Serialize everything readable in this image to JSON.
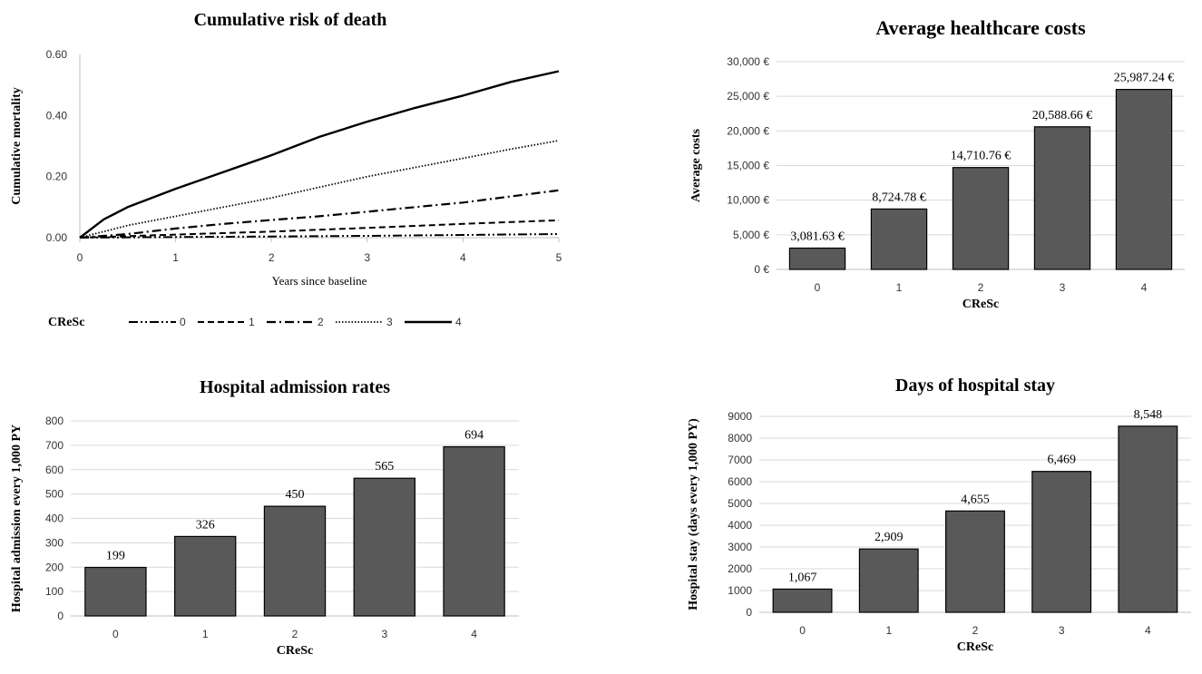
{
  "chart_data": [
    {
      "id": "mortality",
      "type": "line",
      "title": "Cumulative risk of death",
      "xlabel": "Years since baseline",
      "ylabel": "Cumulative  mortality",
      "xlim": [
        0,
        5
      ],
      "ylim": [
        0,
        0.6
      ],
      "xticks": [
        "0",
        "1",
        "2",
        "3",
        "4",
        "5"
      ],
      "yticks": [
        "0.00",
        "0.20",
        "0.40",
        "0.60"
      ],
      "legend_title": "CReSc",
      "series": [
        {
          "name": "0",
          "dash": "dash-dot-dot",
          "x": [
            0,
            1,
            2,
            3,
            4,
            5
          ],
          "y": [
            0,
            0.002,
            0.004,
            0.006,
            0.009,
            0.012
          ]
        },
        {
          "name": "1",
          "dash": "dashed",
          "x": [
            0,
            1,
            2,
            3,
            4,
            5
          ],
          "y": [
            0,
            0.01,
            0.02,
            0.032,
            0.045,
            0.057
          ]
        },
        {
          "name": "2",
          "dash": "dash-dot",
          "x": [
            0,
            0.5,
            1,
            1.5,
            2,
            2.5,
            3,
            3.5,
            4,
            4.5,
            5
          ],
          "y": [
            0,
            0.012,
            0.03,
            0.045,
            0.058,
            0.07,
            0.085,
            0.1,
            0.115,
            0.135,
            0.155
          ]
        },
        {
          "name": "3",
          "dash": "dotted",
          "x": [
            0,
            0.5,
            1,
            1.5,
            2,
            2.5,
            3,
            3.5,
            4,
            4.5,
            5
          ],
          "y": [
            0,
            0.04,
            0.07,
            0.1,
            0.13,
            0.165,
            0.2,
            0.23,
            0.26,
            0.29,
            0.318
          ]
        },
        {
          "name": "4",
          "dash": "solid",
          "x": [
            0,
            0.25,
            0.5,
            1,
            1.5,
            2,
            2.5,
            3,
            3.5,
            4,
            4.5,
            5
          ],
          "y": [
            0,
            0.06,
            0.1,
            0.16,
            0.215,
            0.27,
            0.33,
            0.38,
            0.425,
            0.465,
            0.51,
            0.545
          ]
        }
      ]
    },
    {
      "id": "costs",
      "type": "bar",
      "title": "Average healthcare costs",
      "xlabel": "CReSc",
      "ylabel": "Average  costs",
      "categories": [
        "0",
        "1",
        "2",
        "3",
        "4"
      ],
      "values": [
        3081.63,
        8724.78,
        14710.76,
        20588.66,
        25987.24
      ],
      "labels": [
        "3,081.63 €",
        "8,724.78 €",
        "14,710.76 €",
        "20,588.66 €",
        "25,987.24 €"
      ],
      "ylim": [
        0,
        30000
      ],
      "yticks": [
        "0 €",
        "5,000 €",
        "10,000 €",
        "15,000 €",
        "20,000 €",
        "25,000 €",
        "30,000 €"
      ]
    },
    {
      "id": "admissions",
      "type": "bar",
      "title": "Hospital admission rates",
      "xlabel": "CReSc",
      "ylabel": "Hospital admission every 1,000 PY",
      "categories": [
        "0",
        "1",
        "2",
        "3",
        "4"
      ],
      "values": [
        199,
        326,
        450,
        565,
        694
      ],
      "labels": [
        "199",
        "326",
        "450",
        "565",
        "694"
      ],
      "ylim": [
        0,
        800
      ],
      "yticks": [
        "0",
        "100",
        "200",
        "300",
        "400",
        "500",
        "600",
        "700",
        "800"
      ]
    },
    {
      "id": "stay",
      "type": "bar",
      "title": "Days of hospital stay",
      "xlabel": "CReSc",
      "ylabel": "Hospital  stay  (days  every  1,000 PY)",
      "categories": [
        "0",
        "1",
        "2",
        "3",
        "4"
      ],
      "values": [
        1067,
        2909,
        4655,
        6469,
        8548
      ],
      "labels": [
        "1,067",
        "2,909",
        "4,655",
        "6,469",
        "8,548"
      ],
      "ylim": [
        0,
        9000
      ],
      "yticks": [
        "0",
        "1000",
        "2000",
        "3000",
        "4000",
        "5000",
        "6000",
        "7000",
        "8000",
        "9000"
      ]
    }
  ],
  "colors": {
    "bar": "#595959",
    "bar_stroke": "#000000",
    "grid": "#d9d9d9",
    "axis": "#bfbfbf",
    "line": "#000000"
  }
}
